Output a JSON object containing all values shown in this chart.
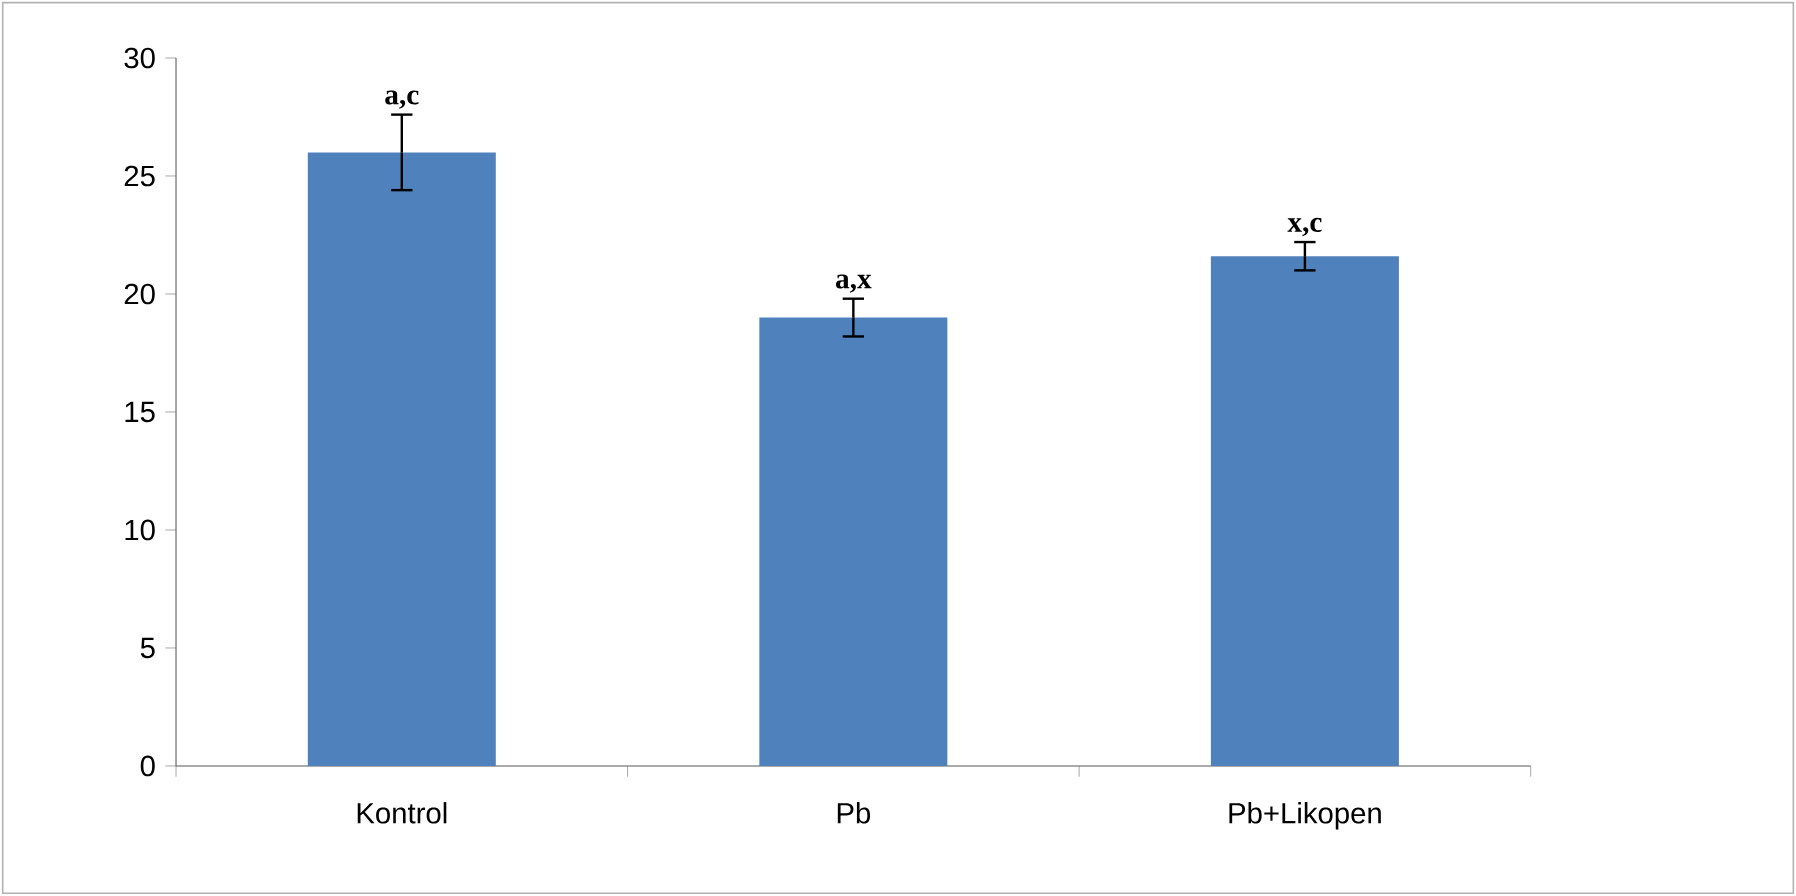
{
  "chart_data": {
    "type": "bar",
    "categories": [
      "Kontrol",
      "Pb",
      "Pb+Likopen"
    ],
    "values": [
      26.0,
      19.0,
      21.6
    ],
    "errors": [
      1.6,
      0.8,
      0.6
    ],
    "color": "#4f81bd",
    "ylim": [
      0,
      30
    ],
    "yticks": [
      0,
      5,
      10,
      15,
      20,
      25,
      30
    ],
    "annotations": [
      {
        "text": "a,c",
        "x": "Kontrol",
        "y": 27.6
      },
      {
        "text": "a,x",
        "x": "Pb",
        "y": 19.8
      },
      {
        "text": "x,c",
        "x": "Pb+Likopen",
        "y": 22.2
      }
    ]
  }
}
